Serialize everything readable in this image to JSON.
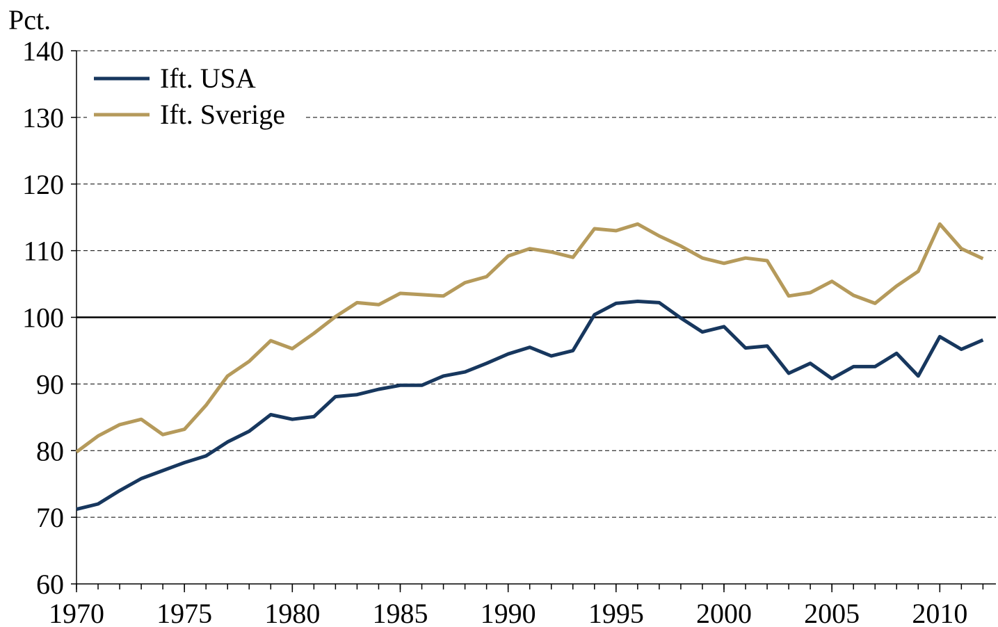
{
  "chart_data": {
    "type": "line",
    "y_label": "Pct.",
    "x": [
      1970,
      1971,
      1972,
      1973,
      1974,
      1975,
      1976,
      1977,
      1978,
      1979,
      1980,
      1981,
      1982,
      1983,
      1984,
      1985,
      1986,
      1987,
      1988,
      1989,
      1990,
      1991,
      1992,
      1993,
      1994,
      1995,
      1996,
      1997,
      1998,
      1999,
      2000,
      2001,
      2002,
      2003,
      2004,
      2005,
      2006,
      2007,
      2008,
      2009,
      2010,
      2011,
      2012
    ],
    "series": [
      {
        "name": "Ift. USA",
        "color": "#17375e",
        "values": [
          71.2,
          72.0,
          74.0,
          75.8,
          77.0,
          78.2,
          79.2,
          81.3,
          82.9,
          85.4,
          84.7,
          85.1,
          88.1,
          88.4,
          89.2,
          89.8,
          89.8,
          91.2,
          91.8,
          93.1,
          94.5,
          95.5,
          94.2,
          95.0,
          100.4,
          102.1,
          102.4,
          102.2,
          99.9,
          97.8,
          98.6,
          95.4,
          95.7,
          91.6,
          93.1,
          90.8,
          92.6,
          92.6,
          94.6,
          91.2,
          97.1,
          95.2,
          96.6
        ]
      },
      {
        "name": "Ift. Sverige",
        "color": "#b59a5b",
        "values": [
          79.8,
          82.2,
          83.9,
          84.7,
          82.4,
          83.2,
          86.8,
          91.2,
          93.4,
          96.5,
          95.3,
          97.6,
          100.1,
          102.2,
          101.9,
          103.6,
          103.4,
          103.2,
          105.2,
          106.1,
          109.2,
          110.3,
          109.8,
          109.0,
          113.3,
          113.0,
          114.0,
          112.2,
          110.7,
          108.9,
          108.1,
          108.9,
          108.5,
          103.2,
          103.7,
          105.4,
          103.3,
          102.1,
          104.7,
          106.9,
          114.0,
          110.3,
          108.8
        ]
      }
    ],
    "xlim": [
      1970,
      2012.6
    ],
    "xticks": [
      1970,
      1975,
      1980,
      1985,
      1990,
      1995,
      2000,
      2005,
      2010
    ],
    "ylim": [
      60,
      140
    ],
    "yticks": [
      60,
      70,
      80,
      90,
      100,
      110,
      120,
      130,
      140
    ],
    "grid": true,
    "reference_line": 100,
    "legend": "top-left"
  }
}
